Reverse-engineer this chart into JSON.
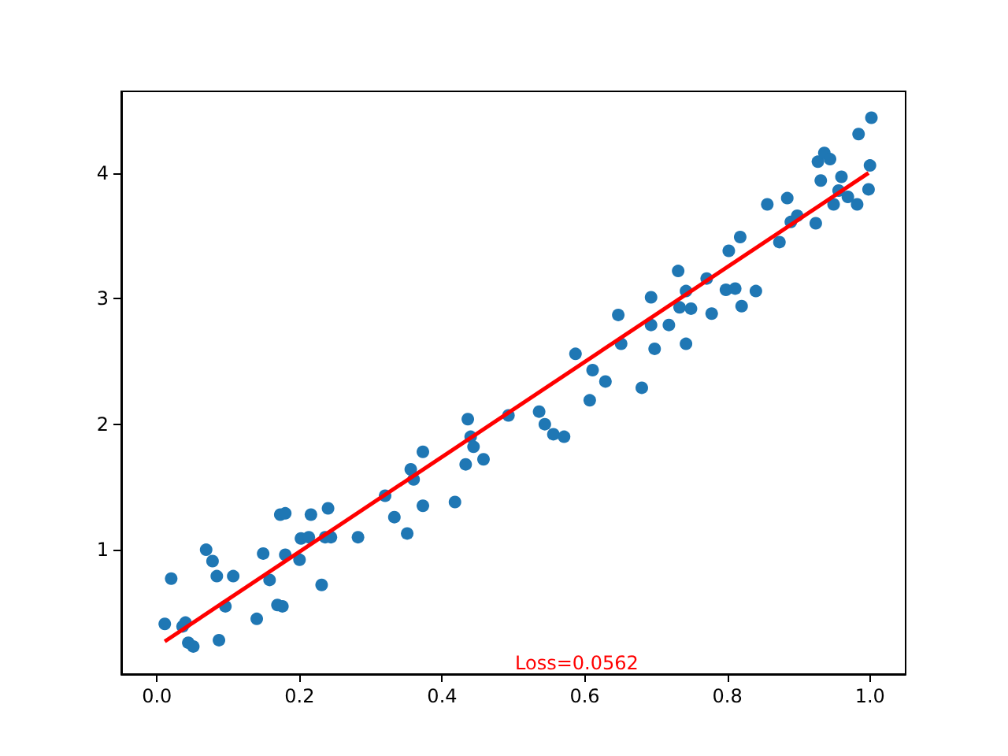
{
  "chart_data": {
    "type": "scatter",
    "annotations": [
      "Loss=0.0562"
    ],
    "xlim": [
      -0.05,
      1.05
    ],
    "ylim": [
      0.01,
      4.65
    ],
    "xticks": [
      {
        "value": 0,
        "label": "0.0"
      },
      {
        "value": 0.2,
        "label": "0.2"
      },
      {
        "value": 0.4,
        "label": "0.4"
      },
      {
        "value": 0.6,
        "label": "0.6"
      },
      {
        "value": 0.8,
        "label": "0.8"
      },
      {
        "value": 1,
        "label": "1.0"
      }
    ],
    "yticks": [
      1,
      2,
      3,
      4
    ],
    "series": [
      {
        "color": "#1f77b4",
        "x": [
          0.011,
          0.02,
          0.036,
          0.04,
          0.044,
          0.051,
          0.069,
          0.078,
          0.084,
          0.087,
          0.096,
          0.107,
          0.14,
          0.149,
          0.158,
          0.169,
          0.176,
          0.173,
          0.18,
          0.18,
          0.2,
          0.202,
          0.213,
          0.216,
          0.231,
          0.236,
          0.24,
          0.244,
          0.282,
          0.32,
          0.333,
          0.351,
          0.356,
          0.36,
          0.373,
          0.373,
          0.418,
          0.433,
          0.436,
          0.44,
          0.444,
          0.458,
          0.493,
          0.536,
          0.544,
          0.556,
          0.571,
          0.587,
          0.611,
          0.629,
          0.607,
          0.68,
          0.647,
          0.651,
          0.693,
          0.693,
          0.698,
          0.718,
          0.731,
          0.742,
          0.733,
          0.749,
          0.742,
          0.771,
          0.778,
          0.802,
          0.818,
          0.798,
          0.811,
          0.82,
          0.84,
          0.856,
          0.873,
          0.884,
          0.889,
          0.898,
          0.924,
          0.927,
          0.936,
          0.944,
          0.931,
          0.96,
          0.949,
          0.956,
          0.969,
          0.982,
          0.984,
          1.0,
          0.998,
          1.002
        ],
        "values": [
          0.41,
          0.77,
          0.39,
          0.42,
          0.26,
          0.23,
          1.0,
          0.91,
          0.79,
          0.28,
          0.55,
          0.79,
          0.45,
          0.97,
          0.76,
          0.56,
          0.55,
          1.28,
          1.29,
          0.96,
          0.92,
          1.09,
          1.1,
          1.28,
          0.72,
          1.1,
          1.33,
          1.1,
          1.1,
          1.43,
          1.26,
          1.13,
          1.64,
          1.56,
          1.78,
          1.35,
          1.38,
          1.68,
          2.04,
          1.9,
          1.82,
          1.72,
          2.07,
          2.1,
          2.0,
          1.92,
          1.9,
          2.56,
          2.43,
          2.34,
          2.19,
          2.29,
          2.87,
          2.64,
          3.01,
          2.79,
          2.6,
          2.79,
          3.22,
          3.06,
          2.93,
          2.92,
          2.64,
          3.16,
          2.88,
          3.38,
          3.49,
          3.07,
          3.08,
          2.94,
          3.06,
          3.75,
          3.45,
          3.8,
          3.61,
          3.66,
          3.6,
          4.09,
          4.16,
          4.11,
          3.94,
          3.97,
          3.75,
          3.86,
          3.81,
          3.75,
          4.31,
          4.06,
          3.87,
          4.44
        ]
      },
      {
        "type": "line",
        "color": "#ff0000",
        "x": [
          0.011,
          0.998
        ],
        "values": [
          0.27,
          4.0
        ]
      }
    ]
  }
}
